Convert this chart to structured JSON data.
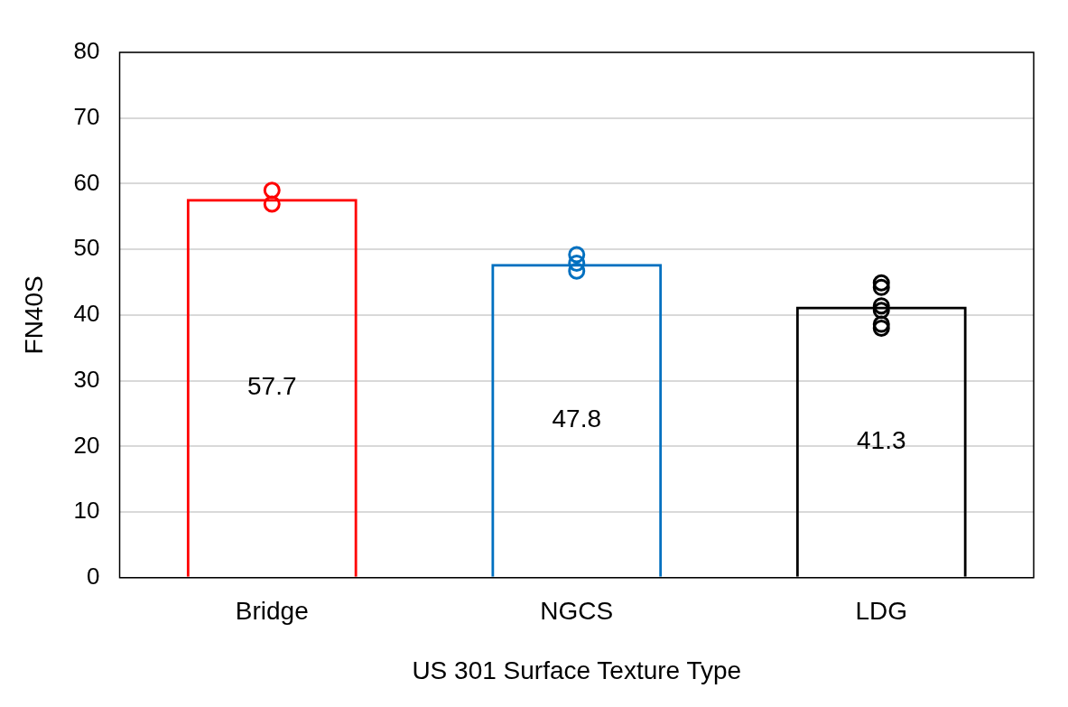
{
  "chart_data": {
    "type": "bar",
    "xlabel": "US 301 Surface Texture Type",
    "ylabel": "FN40S",
    "categories": [
      "Bridge",
      "NGCS",
      "LDG"
    ],
    "ylim": [
      0,
      80
    ],
    "yticks": [
      0,
      10,
      20,
      30,
      40,
      50,
      60,
      70,
      80
    ],
    "grid": "y",
    "legend": false,
    "marker": "circle",
    "series": [
      {
        "colors": [
          "#ff0000",
          "#0070c0",
          "#000000"
        ],
        "values": [
          57.7,
          47.8,
          41.3
        ],
        "value_labels": [
          "57.7",
          "47.8",
          "41.3"
        ]
      },
      {
        "type": "scatter",
        "color": "#ff0000",
        "x": [
          "Bridge",
          "Bridge"
        ],
        "values": [
          59,
          56.9
        ]
      },
      {
        "type": "scatter",
        "color": "#0070c0",
        "x": [
          "NGCS",
          "NGCS",
          "NGCS"
        ],
        "values": [
          49.2,
          47.9,
          46.7
        ]
      },
      {
        "type": "scatter",
        "color": "#000000",
        "x": [
          "LDG",
          "LDG",
          "LDG",
          "LDG",
          "LDG",
          "LDG"
        ],
        "values": [
          44.9,
          44.2,
          41.4,
          40.7,
          38.6,
          38.0
        ]
      }
    ]
  }
}
